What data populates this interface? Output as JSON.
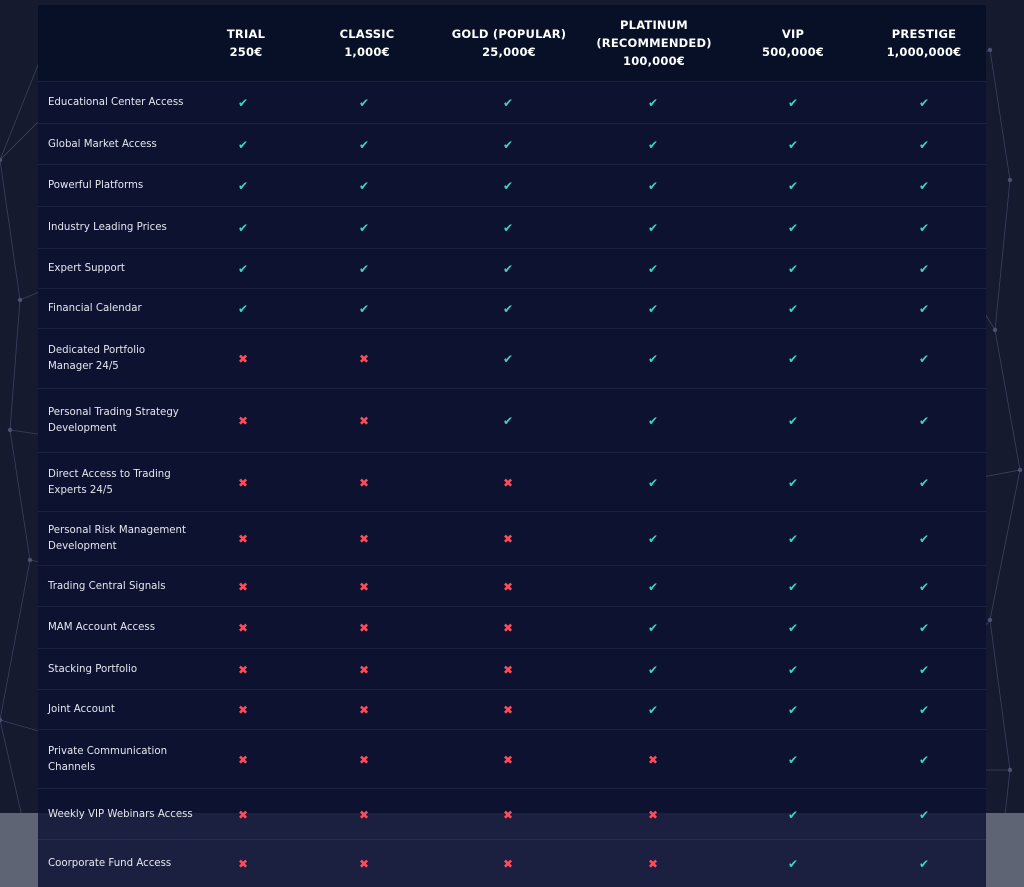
{
  "colors": {
    "check": "#3fd4c8",
    "cross": "#ff4c5b",
    "table_bg": "#0c1230",
    "page_bg": "#161a2e"
  },
  "plans": [
    {
      "name": "TRIAL",
      "price": "250€"
    },
    {
      "name": "CLASSIC",
      "price": "1,000€"
    },
    {
      "name": "GOLD (POPULAR)",
      "price": "25,000€"
    },
    {
      "name": "PLATINUM",
      "name2": "(RECOMMENDED)",
      "price": "100,000€"
    },
    {
      "name": "VIP",
      "price": "500,000€"
    },
    {
      "name": "PRESTIGE",
      "price": "1,000,000€"
    }
  ],
  "features": [
    {
      "label": "Educational Center Access",
      "included": [
        true,
        true,
        true,
        true,
        true,
        true
      ]
    },
    {
      "label": "Global Market Access",
      "included": [
        true,
        true,
        true,
        true,
        true,
        true
      ]
    },
    {
      "label": "Powerful Platforms",
      "included": [
        true,
        true,
        true,
        true,
        true,
        true
      ]
    },
    {
      "label": "Industry Leading Prices",
      "included": [
        true,
        true,
        true,
        true,
        true,
        true
      ]
    },
    {
      "label": "Expert Support",
      "included": [
        true,
        true,
        true,
        true,
        true,
        true
      ]
    },
    {
      "label": "Financial Calendar",
      "included": [
        true,
        true,
        true,
        true,
        true,
        true
      ]
    },
    {
      "label": "Dedicated Portfolio Manager 24/5",
      "included": [
        false,
        false,
        true,
        true,
        true,
        true
      ]
    },
    {
      "label": "Personal Trading Strategy Development",
      "included": [
        false,
        false,
        true,
        true,
        true,
        true
      ]
    },
    {
      "label": "Direct Access to Trading Experts 24/5",
      "included": [
        false,
        false,
        false,
        true,
        true,
        true
      ]
    },
    {
      "label": "Personal Risk Management Development",
      "included": [
        false,
        false,
        false,
        true,
        true,
        true
      ]
    },
    {
      "label": "Trading Central Signals",
      "included": [
        false,
        false,
        false,
        true,
        true,
        true
      ]
    },
    {
      "label": "MAM Account Access",
      "included": [
        false,
        false,
        false,
        true,
        true,
        true
      ]
    },
    {
      "label": "Stacking Portfolio",
      "included": [
        false,
        false,
        false,
        true,
        true,
        true
      ]
    },
    {
      "label": "Joint Account",
      "included": [
        false,
        false,
        false,
        true,
        true,
        true
      ]
    },
    {
      "label": "Private Communication Channels",
      "included": [
        false,
        false,
        false,
        false,
        true,
        true
      ]
    },
    {
      "label": "Weekly VIP Webinars Access",
      "included": [
        false,
        false,
        false,
        false,
        true,
        true
      ]
    },
    {
      "label": "Coorporate Fund Access",
      "included": [
        false,
        false,
        false,
        false,
        true,
        true
      ]
    }
  ],
  "icons": {
    "check": "✔",
    "cross": "✖"
  }
}
